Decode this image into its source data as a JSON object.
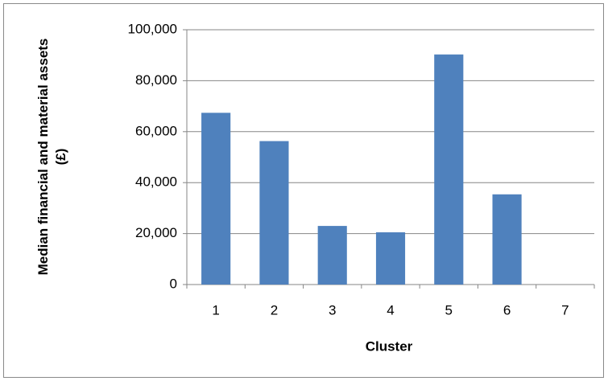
{
  "chart_data": {
    "type": "bar",
    "xlabel": "Cluster",
    "ylabel": "Median financial and material assets (£)",
    "categories": [
      "1",
      "2",
      "3",
      "4",
      "5",
      "6",
      "7"
    ],
    "values": [
      67400,
      56300,
      23000,
      20500,
      90300,
      35400,
      null
    ],
    "color": "#4f81bd",
    "ylim": [
      0,
      100000
    ],
    "yticks": [
      0,
      {
        "value": 20000,
        "label": "20,000"
      },
      {
        "value": 40000,
        "label": "40,000"
      },
      {
        "value": 60000,
        "label": "60,000"
      },
      {
        "value": 80000,
        "label": "80,000"
      },
      {
        "value": 100000,
        "label": "100,000"
      }
    ],
    "grid": true
  }
}
